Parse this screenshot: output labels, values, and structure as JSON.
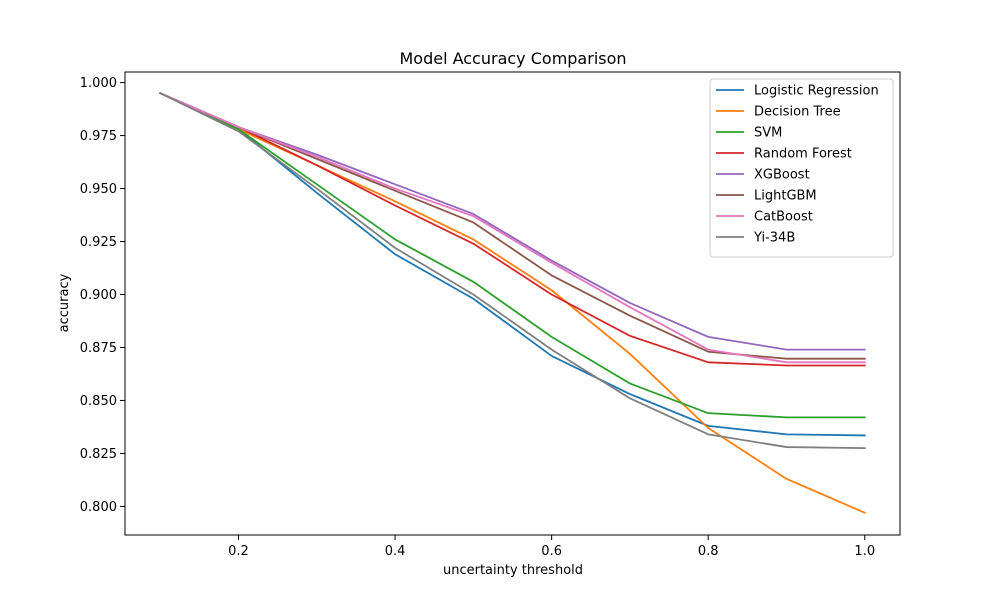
{
  "chart_data": {
    "type": "line",
    "title": "Model Accuracy Comparison",
    "xlabel": "uncertainty threshold",
    "ylabel": "accuracy",
    "xlim": [
      0.055,
      1.045
    ],
    "ylim": [
      0.7865,
      1.005
    ],
    "x_ticks": [
      0.2,
      0.4,
      0.6,
      0.8,
      1.0
    ],
    "x_tick_labels": [
      "0.2",
      "0.4",
      "0.6",
      "0.8",
      "1.0"
    ],
    "y_ticks": [
      0.8,
      0.825,
      0.85,
      0.875,
      0.9,
      0.925,
      0.95,
      0.975,
      1.0
    ],
    "y_tick_labels": [
      "0.800",
      "0.825",
      "0.850",
      "0.875",
      "0.900",
      "0.925",
      "0.950",
      "0.975",
      "1.000"
    ],
    "grid": false,
    "legend_position": "top-right",
    "x": [
      0.1,
      0.2,
      0.3,
      0.4,
      0.5,
      0.6,
      0.7,
      0.8,
      0.9,
      1.0
    ],
    "series": [
      {
        "name": "Logistic Regression",
        "color": "#1f77b4",
        "values": [
          0.995,
          0.978,
          0.948,
          0.919,
          0.898,
          0.871,
          0.853,
          0.838,
          0.834,
          0.8335
        ]
      },
      {
        "name": "Decision Tree",
        "color": "#ff7f0e",
        "values": [
          0.995,
          0.978,
          0.961,
          0.944,
          0.926,
          0.902,
          0.872,
          0.837,
          0.813,
          0.797
        ]
      },
      {
        "name": "SVM",
        "color": "#2ca02c",
        "values": [
          0.995,
          0.978,
          0.952,
          0.926,
          0.906,
          0.88,
          0.858,
          0.844,
          0.842,
          0.842
        ]
      },
      {
        "name": "Random Forest",
        "color": "#d62728",
        "values": [
          0.995,
          0.979,
          0.961,
          0.942,
          0.924,
          0.9,
          0.8805,
          0.868,
          0.8665,
          0.8665
        ]
      },
      {
        "name": "XGBoost",
        "color": "#9467bd",
        "values": [
          0.995,
          0.979,
          0.966,
          0.952,
          0.938,
          0.916,
          0.896,
          0.88,
          0.874,
          0.874
        ]
      },
      {
        "name": "LightGBM",
        "color": "#8c564b",
        "values": [
          0.995,
          0.979,
          0.964,
          0.949,
          0.934,
          0.909,
          0.89,
          0.873,
          0.8697,
          0.8697
        ]
      },
      {
        "name": "CatBoost",
        "color": "#e377c2",
        "values": [
          0.995,
          0.979,
          0.965,
          0.95,
          0.937,
          0.915,
          0.894,
          0.874,
          0.868,
          0.868
        ]
      },
      {
        "name": "Yi-34B",
        "color": "#7f7f7f",
        "values": [
          0.995,
          0.977,
          0.95,
          0.922,
          0.9,
          0.874,
          0.851,
          0.834,
          0.828,
          0.8275
        ]
      }
    ]
  }
}
